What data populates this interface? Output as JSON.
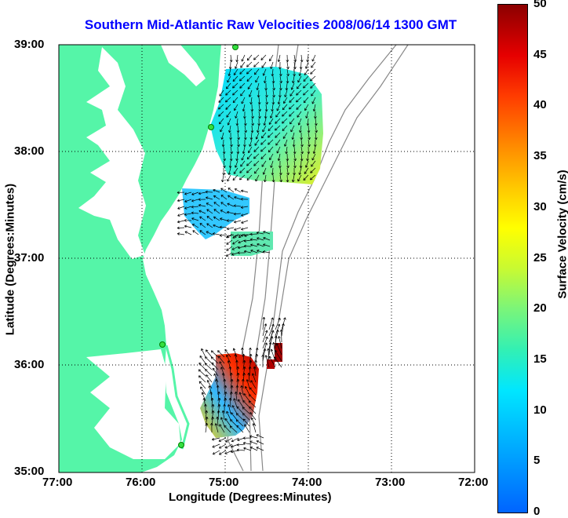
{
  "title": "Southern Mid-Atlantic Raw Velocities 2008/06/14 1300 GMT",
  "xlabel": "Longitude (Degrees:Minutes)",
  "ylabel": "Latitude (Degrees:Minutes)",
  "colorbar": {
    "label": "Surface Velocity (cm/s)",
    "ticks": [
      "0",
      "5",
      "10",
      "15",
      "20",
      "25",
      "30",
      "35",
      "40",
      "45",
      "50"
    ],
    "colors": [
      "#0064ff",
      "#00e6ff",
      "#7af57a",
      "#ffff00",
      "#ff8c00",
      "#e60000",
      "#8b0000"
    ]
  },
  "axes": {
    "lon_ticks": [
      "77:00",
      "76:00",
      "75:00",
      "74:00",
      "73:00",
      "72:00"
    ],
    "lat_ticks": [
      "39:00",
      "38:00",
      "37:00",
      "36:00",
      "35:00"
    ]
  },
  "colors": {
    "land": "#55f5a8",
    "title": "#0000ff",
    "grid": "#000000",
    "bathymetry": "#888888"
  }
}
